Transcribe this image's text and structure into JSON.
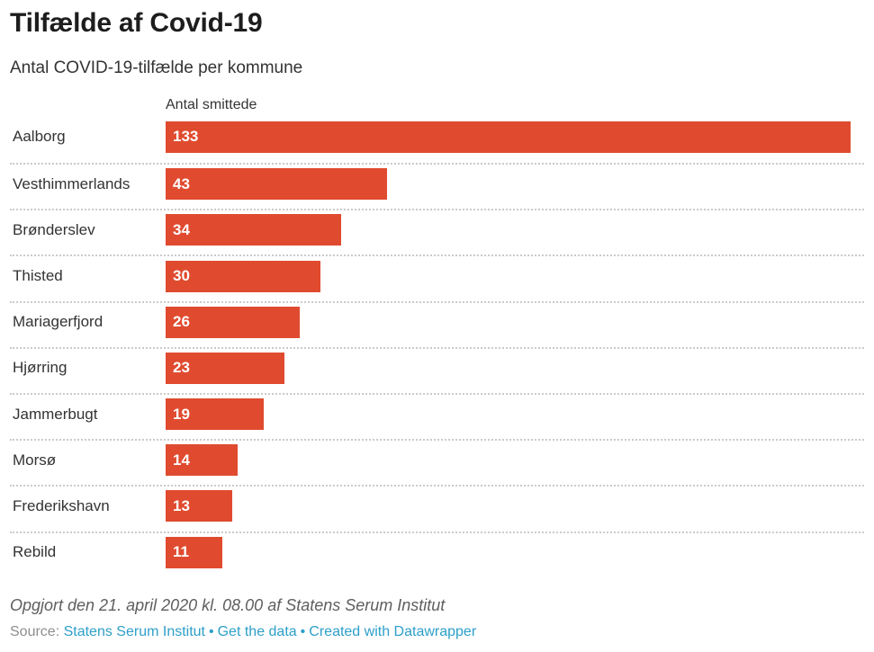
{
  "header": {
    "title": "Tilfælde af Covid-19",
    "subtitle": "Antal COVID-19-tilfælde per kommune"
  },
  "chart_data": {
    "type": "bar",
    "orientation": "horizontal",
    "column_header": "Antal smittede",
    "categories": [
      "Aalborg",
      "Vesthimmerlands",
      "Brønderslev",
      "Thisted",
      "Mariagerfjord",
      "Hjørring",
      "Jammerbugt",
      "Morsø",
      "Frederikshavn",
      "Rebild"
    ],
    "values": [
      133,
      43,
      34,
      30,
      26,
      23,
      19,
      14,
      13,
      11
    ],
    "value_labels": "inside-start",
    "xlim": [
      0,
      133
    ],
    "grid": "dotted-row-separators",
    "legend": "none",
    "bar_color": "#e04b2f",
    "value_label_color": "#ffffff"
  },
  "footer": {
    "note": "Opgjort den 21. april 2020 kl. 08.00 af Statens Serum Institut",
    "source_label": "Source:",
    "links": [
      "Statens Serum Institut",
      "Get the data",
      "Created with Datawrapper"
    ],
    "separator": "•",
    "link_color": "#2d9fc8"
  },
  "colors": {
    "background": "#ffffff",
    "bar": "#e04b2f",
    "title_text": "#1d1d1d",
    "body_text": "#333333",
    "note_text": "#5e5e5e",
    "source_text": "#8e8e8e",
    "separator_dots": "#cbcbcb",
    "link": "#2d9fc8"
  }
}
